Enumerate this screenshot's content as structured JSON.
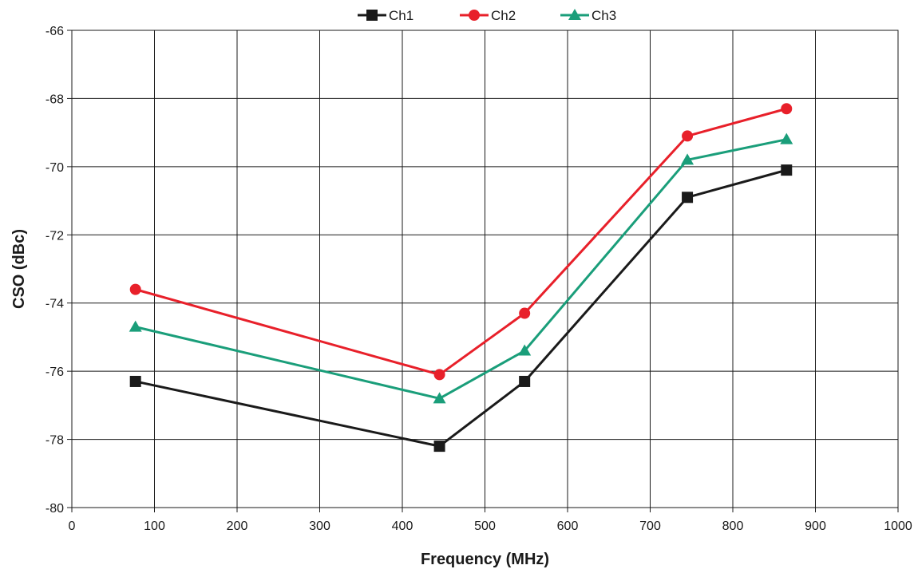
{
  "chart_data": {
    "type": "line",
    "title": "",
    "xlabel": "Frequency (MHz)",
    "ylabel": "CSO (dBc)",
    "xlim": [
      0,
      1000
    ],
    "ylim": [
      -80,
      -66
    ],
    "xticks": [
      0,
      100,
      200,
      300,
      400,
      500,
      600,
      700,
      800,
      900,
      1000
    ],
    "yticks": [
      -80,
      -78,
      -76,
      -74,
      -72,
      -70,
      -68,
      -66
    ],
    "grid": true,
    "legend_position": "top-center",
    "x": [
      77,
      445,
      548,
      745,
      865
    ],
    "series": [
      {
        "name": "Ch1",
        "color": "#1a1a1a",
        "marker": "square",
        "values": [
          -76.3,
          -78.2,
          -76.3,
          -70.9,
          -70.1
        ]
      },
      {
        "name": "Ch2",
        "color": "#e8202a",
        "marker": "circle",
        "values": [
          -73.6,
          -76.1,
          -74.3,
          -69.1,
          -68.3
        ]
      },
      {
        "name": "Ch3",
        "color": "#1a9e7a",
        "marker": "triangle",
        "values": [
          -74.7,
          -76.8,
          -75.4,
          -69.8,
          -69.2
        ]
      }
    ]
  }
}
